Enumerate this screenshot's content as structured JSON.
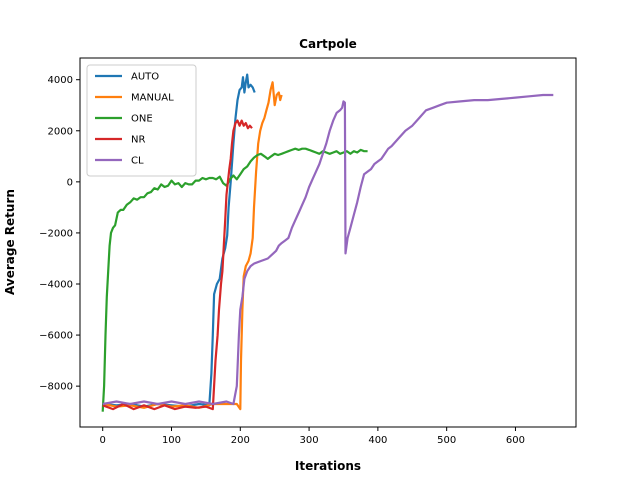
{
  "chart_data": {
    "type": "line",
    "title": "Cartpole",
    "xlabel": "Iterations",
    "ylabel": "Average Return",
    "xlim": [
      -33,
      688
    ],
    "ylim": [
      -9600,
      4850
    ],
    "xticks": [
      0,
      100,
      200,
      300,
      400,
      500,
      600
    ],
    "yticks": [
      -8000,
      -6000,
      -4000,
      -2000,
      0,
      2000,
      4000
    ],
    "grid": false,
    "legend": "top-left",
    "series": [
      {
        "name": "AUTO",
        "color": "#1f77b4",
        "points": [
          [
            0,
            -8700
          ],
          [
            20,
            -8750
          ],
          [
            40,
            -8700
          ],
          [
            60,
            -8800
          ],
          [
            80,
            -8700
          ],
          [
            100,
            -8750
          ],
          [
            120,
            -8800
          ],
          [
            140,
            -8700
          ],
          [
            155,
            -8750
          ],
          [
            158,
            -7500
          ],
          [
            160,
            -6000
          ],
          [
            162,
            -4400
          ],
          [
            166,
            -4000
          ],
          [
            170,
            -3800
          ],
          [
            174,
            -3000
          ],
          [
            178,
            -2600
          ],
          [
            181,
            -2100
          ],
          [
            183,
            -1000
          ],
          [
            186,
            0
          ],
          [
            190,
            1500
          ],
          [
            193,
            2500
          ],
          [
            196,
            3200
          ],
          [
            199,
            3600
          ],
          [
            202,
            3700
          ],
          [
            204,
            4100
          ],
          [
            206,
            3500
          ],
          [
            208,
            3900
          ],
          [
            210,
            4200
          ],
          [
            212,
            3700
          ],
          [
            215,
            3800
          ],
          [
            218,
            3700
          ],
          [
            221,
            3500
          ]
        ]
      },
      {
        "name": "MANUAL",
        "color": "#ff7f0e",
        "points": [
          [
            0,
            -8700
          ],
          [
            20,
            -8800
          ],
          [
            40,
            -8750
          ],
          [
            60,
            -8850
          ],
          [
            80,
            -8700
          ],
          [
            100,
            -8800
          ],
          [
            120,
            -8750
          ],
          [
            140,
            -8850
          ],
          [
            160,
            -8700
          ],
          [
            180,
            -8700
          ],
          [
            195,
            -8700
          ],
          [
            200,
            -8900
          ],
          [
            201,
            -7000
          ],
          [
            203,
            -5000
          ],
          [
            205,
            -3700
          ],
          [
            208,
            -3300
          ],
          [
            212,
            -3100
          ],
          [
            215,
            -2800
          ],
          [
            218,
            -2200
          ],
          [
            220,
            -1000
          ],
          [
            223,
            400
          ],
          [
            226,
            1500
          ],
          [
            229,
            2000
          ],
          [
            232,
            2300
          ],
          [
            235,
            2500
          ],
          [
            238,
            2800
          ],
          [
            241,
            3100
          ],
          [
            244,
            3600
          ],
          [
            247,
            3900
          ],
          [
            250,
            3000
          ],
          [
            253,
            3400
          ],
          [
            256,
            3500
          ],
          [
            258,
            3200
          ],
          [
            260,
            3400
          ]
        ]
      },
      {
        "name": "ONE",
        "color": "#2ca02c",
        "points": [
          [
            0,
            -9000
          ],
          [
            2,
            -8000
          ],
          [
            4,
            -6000
          ],
          [
            6,
            -4500
          ],
          [
            8,
            -3500
          ],
          [
            10,
            -2500
          ],
          [
            12,
            -2000
          ],
          [
            15,
            -1800
          ],
          [
            18,
            -1700
          ],
          [
            22,
            -1200
          ],
          [
            26,
            -1100
          ],
          [
            30,
            -1100
          ],
          [
            35,
            -900
          ],
          [
            40,
            -800
          ],
          [
            45,
            -650
          ],
          [
            50,
            -700
          ],
          [
            55,
            -600
          ],
          [
            60,
            -600
          ],
          [
            65,
            -450
          ],
          [
            70,
            -400
          ],
          [
            75,
            -250
          ],
          [
            80,
            -300
          ],
          [
            85,
            -100
          ],
          [
            90,
            -200
          ],
          [
            95,
            -150
          ],
          [
            100,
            50
          ],
          [
            105,
            -100
          ],
          [
            110,
            -50
          ],
          [
            115,
            -200
          ],
          [
            120,
            -50
          ],
          [
            125,
            -100
          ],
          [
            130,
            -100
          ],
          [
            135,
            50
          ],
          [
            140,
            50
          ],
          [
            145,
            150
          ],
          [
            150,
            100
          ],
          [
            155,
            150
          ],
          [
            160,
            150
          ],
          [
            165,
            100
          ],
          [
            170,
            200
          ],
          [
            175,
            -50
          ],
          [
            180,
            -150
          ],
          [
            185,
            100
          ],
          [
            190,
            250
          ],
          [
            195,
            100
          ],
          [
            200,
            300
          ],
          [
            205,
            500
          ],
          [
            210,
            600
          ],
          [
            215,
            800
          ],
          [
            220,
            950
          ],
          [
            225,
            1050
          ],
          [
            230,
            1100
          ],
          [
            235,
            1000
          ],
          [
            240,
            900
          ],
          [
            245,
            1000
          ],
          [
            250,
            1100
          ],
          [
            255,
            1050
          ],
          [
            260,
            1100
          ],
          [
            265,
            1150
          ],
          [
            270,
            1200
          ],
          [
            275,
            1250
          ],
          [
            280,
            1300
          ],
          [
            285,
            1250
          ],
          [
            290,
            1300
          ],
          [
            295,
            1300
          ],
          [
            300,
            1250
          ],
          [
            305,
            1200
          ],
          [
            310,
            1150
          ],
          [
            315,
            1100
          ],
          [
            320,
            1200
          ],
          [
            325,
            1150
          ],
          [
            330,
            1100
          ],
          [
            335,
            1150
          ],
          [
            340,
            1200
          ],
          [
            345,
            1100
          ],
          [
            350,
            1150
          ],
          [
            355,
            1200
          ],
          [
            360,
            1100
          ],
          [
            365,
            1200
          ],
          [
            370,
            1150
          ],
          [
            375,
            1250
          ],
          [
            380,
            1200
          ],
          [
            385,
            1200
          ]
        ]
      },
      {
        "name": "NR",
        "color": "#d62728",
        "points": [
          [
            0,
            -8750
          ],
          [
            15,
            -8900
          ],
          [
            30,
            -8700
          ],
          [
            45,
            -8900
          ],
          [
            60,
            -8750
          ],
          [
            75,
            -8900
          ],
          [
            90,
            -8750
          ],
          [
            105,
            -8900
          ],
          [
            120,
            -8800
          ],
          [
            135,
            -8850
          ],
          [
            150,
            -8800
          ],
          [
            160,
            -8900
          ],
          [
            164,
            -7000
          ],
          [
            167,
            -6000
          ],
          [
            169,
            -5000
          ],
          [
            172,
            -4000
          ],
          [
            174,
            -3500
          ],
          [
            176,
            -2500
          ],
          [
            178,
            -1500
          ],
          [
            180,
            -500
          ],
          [
            182,
            0
          ],
          [
            184,
            500
          ],
          [
            186,
            900
          ],
          [
            188,
            1500
          ],
          [
            190,
            2000
          ],
          [
            193,
            2300
          ],
          [
            196,
            2400
          ],
          [
            199,
            2200
          ],
          [
            202,
            2400
          ],
          [
            205,
            2200
          ],
          [
            208,
            2300
          ],
          [
            211,
            2100
          ],
          [
            214,
            2200
          ],
          [
            217,
            2100
          ]
        ]
      },
      {
        "name": "CL",
        "color": "#9467bd",
        "points": [
          [
            0,
            -8700
          ],
          [
            20,
            -8600
          ],
          [
            40,
            -8700
          ],
          [
            60,
            -8600
          ],
          [
            80,
            -8700
          ],
          [
            100,
            -8600
          ],
          [
            120,
            -8700
          ],
          [
            140,
            -8600
          ],
          [
            160,
            -8700
          ],
          [
            180,
            -8600
          ],
          [
            190,
            -8700
          ],
          [
            195,
            -8000
          ],
          [
            198,
            -6000
          ],
          [
            200,
            -5000
          ],
          [
            203,
            -4500
          ],
          [
            206,
            -3800
          ],
          [
            210,
            -3500
          ],
          [
            215,
            -3300
          ],
          [
            220,
            -3200
          ],
          [
            230,
            -3100
          ],
          [
            240,
            -3000
          ],
          [
            248,
            -2800
          ],
          [
            252,
            -2700
          ],
          [
            256,
            -2500
          ],
          [
            260,
            -2400
          ],
          [
            265,
            -2300
          ],
          [
            270,
            -2200
          ],
          [
            275,
            -1800
          ],
          [
            280,
            -1500
          ],
          [
            285,
            -1200
          ],
          [
            290,
            -900
          ],
          [
            295,
            -600
          ],
          [
            300,
            -200
          ],
          [
            305,
            100
          ],
          [
            310,
            400
          ],
          [
            315,
            700
          ],
          [
            320,
            1100
          ],
          [
            325,
            1500
          ],
          [
            330,
            2000
          ],
          [
            335,
            2400
          ],
          [
            340,
            2700
          ],
          [
            345,
            2800
          ],
          [
            348,
            2900
          ],
          [
            350,
            3150
          ],
          [
            352,
            3100
          ],
          [
            353,
            -2800
          ],
          [
            356,
            -2200
          ],
          [
            360,
            -1800
          ],
          [
            365,
            -1300
          ],
          [
            370,
            -800
          ],
          [
            375,
            -200
          ],
          [
            380,
            300
          ],
          [
            385,
            400
          ],
          [
            390,
            500
          ],
          [
            395,
            700
          ],
          [
            400,
            800
          ],
          [
            405,
            900
          ],
          [
            410,
            1100
          ],
          [
            415,
            1300
          ],
          [
            420,
            1400
          ],
          [
            430,
            1700
          ],
          [
            440,
            2000
          ],
          [
            450,
            2200
          ],
          [
            460,
            2500
          ],
          [
            470,
            2800
          ],
          [
            480,
            2900
          ],
          [
            490,
            3000
          ],
          [
            500,
            3100
          ],
          [
            520,
            3150
          ],
          [
            540,
            3200
          ],
          [
            560,
            3200
          ],
          [
            580,
            3250
          ],
          [
            600,
            3300
          ],
          [
            620,
            3350
          ],
          [
            640,
            3400
          ],
          [
            655,
            3400
          ]
        ]
      }
    ]
  }
}
